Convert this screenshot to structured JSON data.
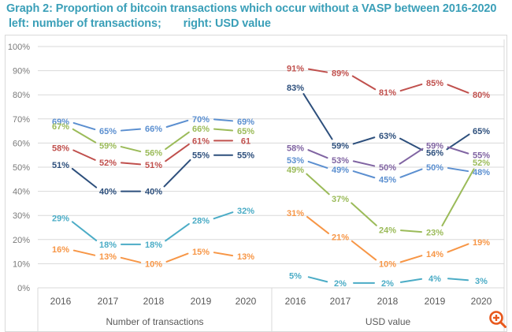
{
  "title": {
    "line1": "Graph 2: Proportion of bitcoin transactions which occur without a VASP between 2016-2020",
    "line2_left": "left: number of transactions;",
    "line2_right": "right: USD value"
  },
  "chart_data": {
    "type": "line",
    "title": "Graph 2: Proportion of bitcoin transactions which occur without a VASP between 2016-2020",
    "ylabel": "",
    "ylim": [
      0,
      100
    ],
    "yticks": [
      "0%",
      "10%",
      "20%",
      "30%",
      "40%",
      "50%",
      "60%",
      "70%",
      "80%",
      "90%",
      "100%"
    ],
    "grid": true,
    "legend": "none",
    "panels": [
      {
        "name": "Number of transactions",
        "xlabel": "Number of transactions",
        "categories": [
          "2016",
          "2017",
          "2018",
          "2019",
          "2020"
        ],
        "series": [
          {
            "name": "series-light-blue",
            "color": "#5b8fd0",
            "values": [
              69,
              65,
              66,
              70,
              69
            ],
            "labels": [
              "69%",
              "65%",
              "66%",
              "70%",
              "69%"
            ]
          },
          {
            "name": "series-green",
            "color": "#9bbb59",
            "values": [
              67,
              59,
              56,
              66,
              65
            ],
            "labels": [
              "67%",
              "59%",
              "56%",
              "66%",
              "65%"
            ]
          },
          {
            "name": "series-red",
            "color": "#c0504d",
            "values": [
              58,
              52,
              51,
              61,
              61
            ],
            "labels": [
              "58%",
              "52%",
              "51%",
              "61%",
              "61"
            ]
          },
          {
            "name": "series-navy",
            "color": "#2d4f7c",
            "values": [
              51,
              40,
              40,
              55,
              55
            ],
            "labels": [
              "51%",
              "40%",
              "40%",
              "55%",
              "55%"
            ]
          },
          {
            "name": "series-cyan",
            "color": "#4bacc6",
            "values": [
              29,
              18,
              18,
              28,
              32
            ],
            "labels": [
              "29%",
              "18%",
              "18%",
              "28%",
              "32%"
            ]
          },
          {
            "name": "series-orange",
            "color": "#f79646",
            "values": [
              16,
              13,
              10,
              15,
              13
            ],
            "labels": [
              "16%",
              "13%",
              "10%",
              "15%",
              "13%"
            ]
          }
        ]
      },
      {
        "name": "USD value",
        "xlabel": "USD value",
        "categories": [
          "2016",
          "2017",
          "2018",
          "2019",
          "2020"
        ],
        "series": [
          {
            "name": "series-red",
            "color": "#c0504d",
            "values": [
              91,
              89,
              81,
              85,
              80
            ],
            "labels": [
              "91%",
              "89%",
              "81%",
              "85%",
              "80%"
            ]
          },
          {
            "name": "series-navy",
            "color": "#2d4f7c",
            "values": [
              83,
              59,
              63,
              56,
              65
            ],
            "labels": [
              "83%",
              "59%",
              "63%",
              "56%",
              "65%"
            ]
          },
          {
            "name": "series-purple",
            "color": "#8064a2",
            "values": [
              58,
              53,
              50,
              59,
              55
            ],
            "labels": [
              "58%",
              "53%",
              "50%",
              "59%",
              "55%"
            ]
          },
          {
            "name": "series-light-blue",
            "color": "#5b8fd0",
            "values": [
              53,
              49,
              45,
              50,
              48
            ],
            "labels": [
              "53%",
              "49%",
              "45%",
              "50%",
              "48%"
            ]
          },
          {
            "name": "series-green",
            "color": "#9bbb59",
            "values": [
              49,
              37,
              24,
              23,
              52
            ],
            "labels": [
              "49%",
              "37%",
              "24%",
              "23%",
              "52%"
            ]
          },
          {
            "name": "series-orange",
            "color": "#f79646",
            "values": [
              31,
              21,
              10,
              14,
              19
            ],
            "labels": [
              "31%",
              "21%",
              "10%",
              "14%",
              "19%"
            ]
          },
          {
            "name": "series-cyan",
            "color": "#4bacc6",
            "values": [
              5,
              2,
              2,
              4,
              3
            ],
            "labels": [
              "5%",
              "2%",
              "2%",
              "4%",
              "3%"
            ]
          }
        ]
      }
    ]
  },
  "zoom_button": {
    "icon": "zoom-in-icon",
    "color": "#e8581c"
  }
}
